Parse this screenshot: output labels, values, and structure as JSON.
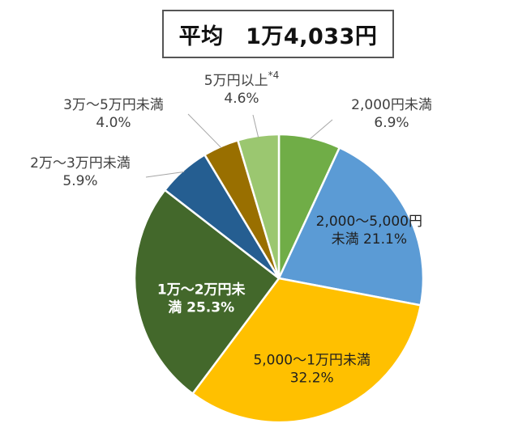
{
  "chart_data": {
    "type": "pie",
    "title": "平均　1万4,033円",
    "slices": [
      {
        "label_lines": [
          "2,000円未満",
          "6.9%"
        ],
        "value": 6.9,
        "color": "#70AD47",
        "label_color": "#404040",
        "label_inside": false
      },
      {
        "label_lines": [
          "2,000～5,000円",
          "未満 21.1%"
        ],
        "value": 21.1,
        "color": "#5B9BD5",
        "label_color": "#1F1F1F",
        "label_inside": true
      },
      {
        "label_lines": [
          "5,000～1万円未満",
          "32.2%"
        ],
        "value": 32.2,
        "color": "#FFC000",
        "label_color": "#1F1F1F",
        "label_inside": true
      },
      {
        "label_lines": [
          "1万～2万円未",
          "満 25.3%"
        ],
        "value": 25.3,
        "color": "#43682B",
        "label_color": "#FFFFFF",
        "label_inside": true
      },
      {
        "label_lines": [
          "2万～3万円未満",
          "5.9%"
        ],
        "value": 5.9,
        "color": "#255E91",
        "label_color": "#404040",
        "label_inside": false
      },
      {
        "label_lines": [
          "3万～5万円未満",
          "4.0%"
        ],
        "value": 4.0,
        "color": "#996F00",
        "label_color": "#404040",
        "label_inside": false
      },
      {
        "label_lines": [
          "5万円以上",
          "4.6%"
        ],
        "label_superscript": "*4",
        "value": 4.6,
        "color": "#9BC770",
        "label_color": "#404040",
        "label_inside": false
      }
    ],
    "start": "12 o'clock",
    "direction": "clockwise",
    "legend": "none"
  }
}
